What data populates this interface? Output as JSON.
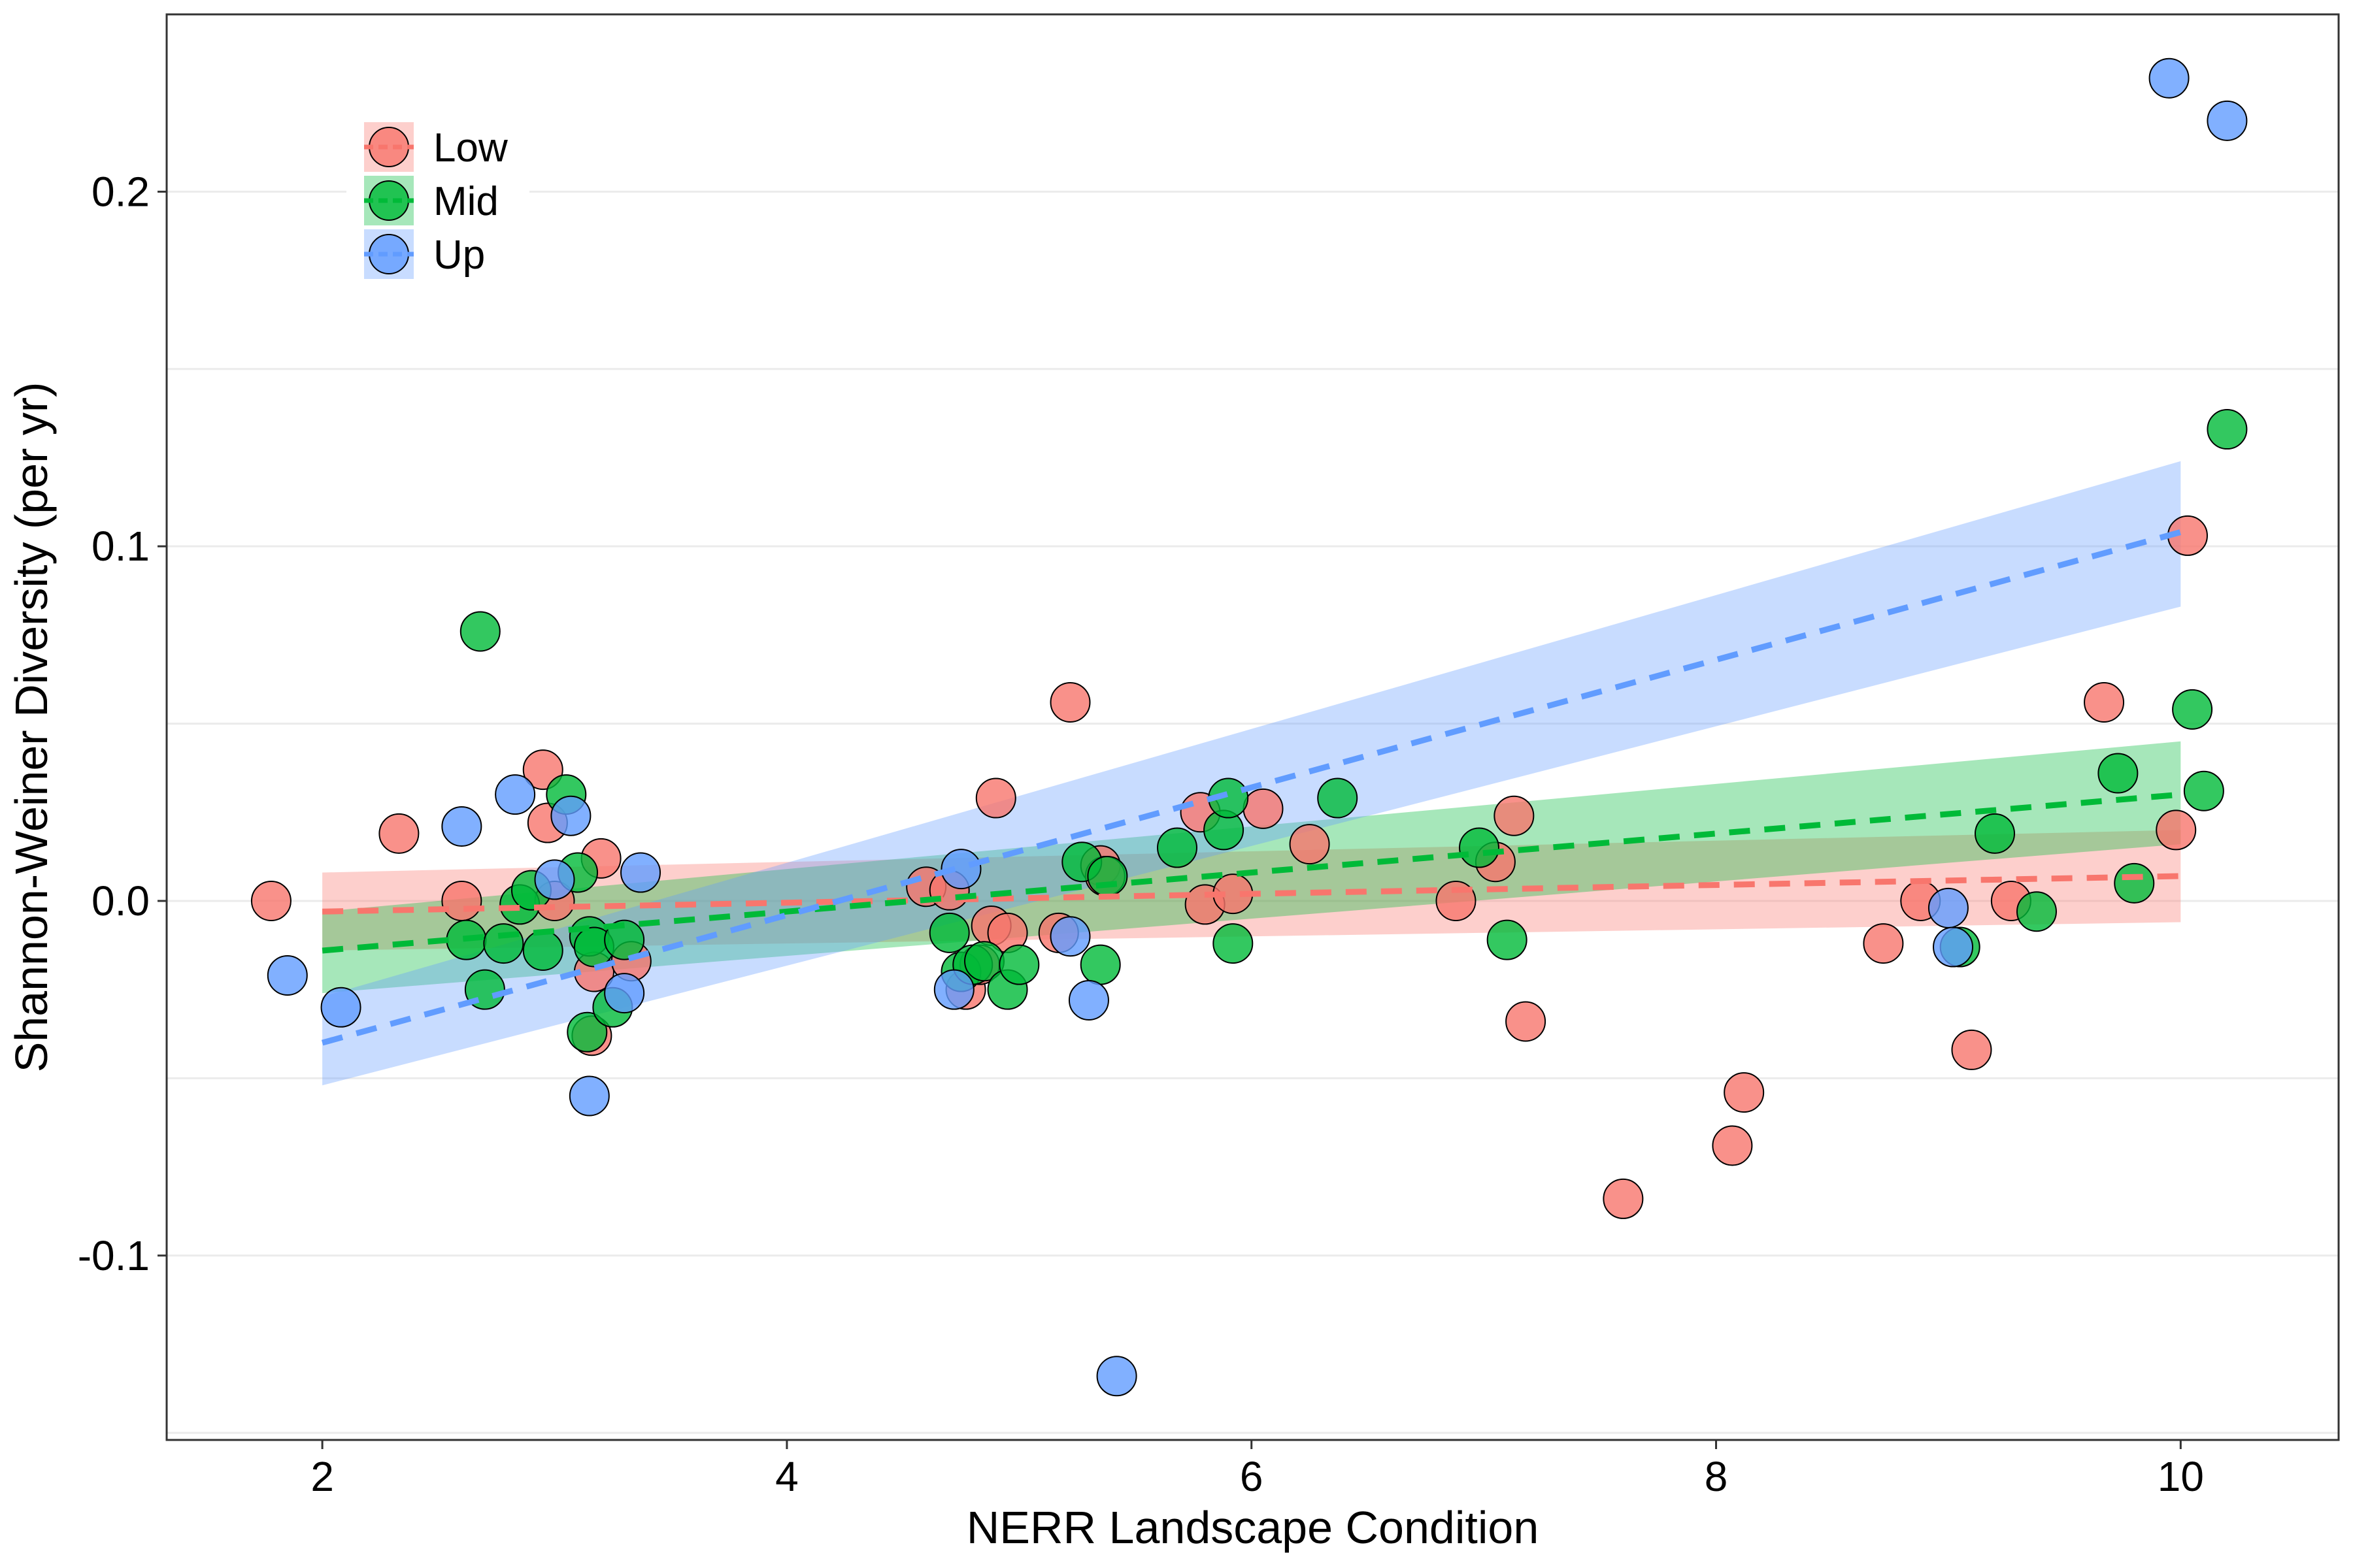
{
  "chart_data": {
    "type": "scatter",
    "title": "",
    "xlabel": "NERR Landscape Condition",
    "ylabel": "Shannon-Weiner Diversity (per yr)",
    "xlim": [
      1.33,
      10.68
    ],
    "ylim": [
      -0.152,
      0.25
    ],
    "xticks": [
      2,
      4,
      6,
      8,
      10
    ],
    "xtick_labels": [
      "2",
      "4",
      "6",
      "8",
      "10"
    ],
    "yticks": [
      -0.1,
      0.0,
      0.1,
      0.2
    ],
    "ytick_labels": [
      "-0.1",
      "0.0",
      "0.1",
      "0.2"
    ],
    "grid": true,
    "legend_position": "top-left",
    "colors": {
      "Low": "#F8766D",
      "Mid": "#00BA38",
      "Up": "#619CFF"
    },
    "series": [
      {
        "name": "Low",
        "color": "#F8766D",
        "trend": {
          "x": [
            2.0,
            10.0
          ],
          "y": [
            -0.003,
            0.007
          ],
          "ci_lower": [
            -0.014,
            -0.006
          ],
          "ci_upper": [
            0.008,
            0.02
          ]
        },
        "points": [
          [
            1.78,
            0.0
          ],
          [
            2.33,
            0.019
          ],
          [
            2.6,
            0.0
          ],
          [
            2.95,
            0.037
          ],
          [
            2.97,
            0.022
          ],
          [
            3.0,
            0.0
          ],
          [
            3.16,
            -0.038
          ],
          [
            3.17,
            -0.02
          ],
          [
            3.2,
            0.012
          ],
          [
            3.33,
            -0.017
          ],
          [
            4.6,
            0.004
          ],
          [
            4.7,
            0.003
          ],
          [
            4.77,
            -0.025
          ],
          [
            4.83,
            -0.018
          ],
          [
            4.88,
            -0.007
          ],
          [
            4.9,
            0.029
          ],
          [
            4.95,
            -0.009
          ],
          [
            5.17,
            -0.009
          ],
          [
            5.22,
            0.056
          ],
          [
            5.35,
            0.01
          ],
          [
            5.37,
            0.007
          ],
          [
            5.78,
            0.025
          ],
          [
            5.8,
            -0.001
          ],
          [
            5.92,
            0.002
          ],
          [
            6.05,
            0.026
          ],
          [
            6.25,
            0.016
          ],
          [
            6.88,
            0.0
          ],
          [
            7.05,
            0.011
          ],
          [
            7.13,
            0.024
          ],
          [
            7.18,
            -0.034
          ],
          [
            7.6,
            -0.084
          ],
          [
            8.07,
            -0.069
          ],
          [
            8.12,
            -0.054
          ],
          [
            8.72,
            -0.012
          ],
          [
            8.88,
            0.0
          ],
          [
            9.1,
            -0.042
          ],
          [
            9.27,
            0.0
          ],
          [
            9.67,
            0.056
          ],
          [
            9.98,
            0.02
          ],
          [
            10.03,
            0.103
          ]
        ]
      },
      {
        "name": "Mid",
        "color": "#00BA38",
        "trend": {
          "x": [
            2.0,
            10.0
          ],
          "y": [
            -0.014,
            0.03
          ],
          "ci_lower": [
            -0.026,
            0.016
          ],
          "ci_upper": [
            -0.003,
            0.045
          ]
        },
        "points": [
          [
            2.62,
            -0.011
          ],
          [
            2.68,
            0.076
          ],
          [
            2.7,
            -0.025
          ],
          [
            2.78,
            -0.012
          ],
          [
            2.85,
            -0.001
          ],
          [
            2.9,
            0.003
          ],
          [
            2.95,
            -0.014
          ],
          [
            3.05,
            0.03
          ],
          [
            3.1,
            0.008
          ],
          [
            3.14,
            -0.037
          ],
          [
            3.15,
            -0.01
          ],
          [
            3.17,
            -0.013
          ],
          [
            3.25,
            -0.03
          ],
          [
            3.3,
            -0.011
          ],
          [
            4.7,
            -0.009
          ],
          [
            4.75,
            -0.02
          ],
          [
            4.8,
            -0.018
          ],
          [
            4.85,
            -0.017
          ],
          [
            4.95,
            -0.025
          ],
          [
            5.0,
            -0.018
          ],
          [
            5.27,
            0.011
          ],
          [
            5.35,
            -0.018
          ],
          [
            5.38,
            0.007
          ],
          [
            5.68,
            0.015
          ],
          [
            5.88,
            0.02
          ],
          [
            5.9,
            0.029
          ],
          [
            5.92,
            -0.012
          ],
          [
            6.37,
            0.029
          ],
          [
            6.98,
            0.015
          ],
          [
            7.1,
            -0.011
          ],
          [
            9.05,
            -0.013
          ],
          [
            9.2,
            0.019
          ],
          [
            9.38,
            -0.003
          ],
          [
            9.73,
            0.036
          ],
          [
            9.8,
            0.005
          ],
          [
            10.05,
            0.054
          ],
          [
            10.1,
            0.031
          ],
          [
            10.2,
            0.133
          ]
        ]
      },
      {
        "name": "Up",
        "color": "#619CFF",
        "trend": {
          "x": [
            2.0,
            10.0
          ],
          "y": [
            -0.04,
            0.104
          ],
          "ci_lower": [
            -0.052,
            0.083
          ],
          "ci_upper": [
            -0.027,
            0.124
          ]
        },
        "points": [
          [
            1.85,
            -0.021
          ],
          [
            2.08,
            -0.03
          ],
          [
            2.6,
            0.021
          ],
          [
            2.83,
            0.03
          ],
          [
            3.0,
            0.006
          ],
          [
            3.07,
            0.024
          ],
          [
            3.15,
            -0.055
          ],
          [
            3.3,
            -0.026
          ],
          [
            3.37,
            0.008
          ],
          [
            4.72,
            -0.025
          ],
          [
            4.75,
            0.009
          ],
          [
            5.22,
            -0.01
          ],
          [
            5.3,
            -0.028
          ],
          [
            5.42,
            -0.134
          ],
          [
            9.0,
            -0.002
          ],
          [
            9.02,
            -0.013
          ],
          [
            9.95,
            0.232
          ],
          [
            10.2,
            0.22
          ]
        ]
      }
    ]
  }
}
